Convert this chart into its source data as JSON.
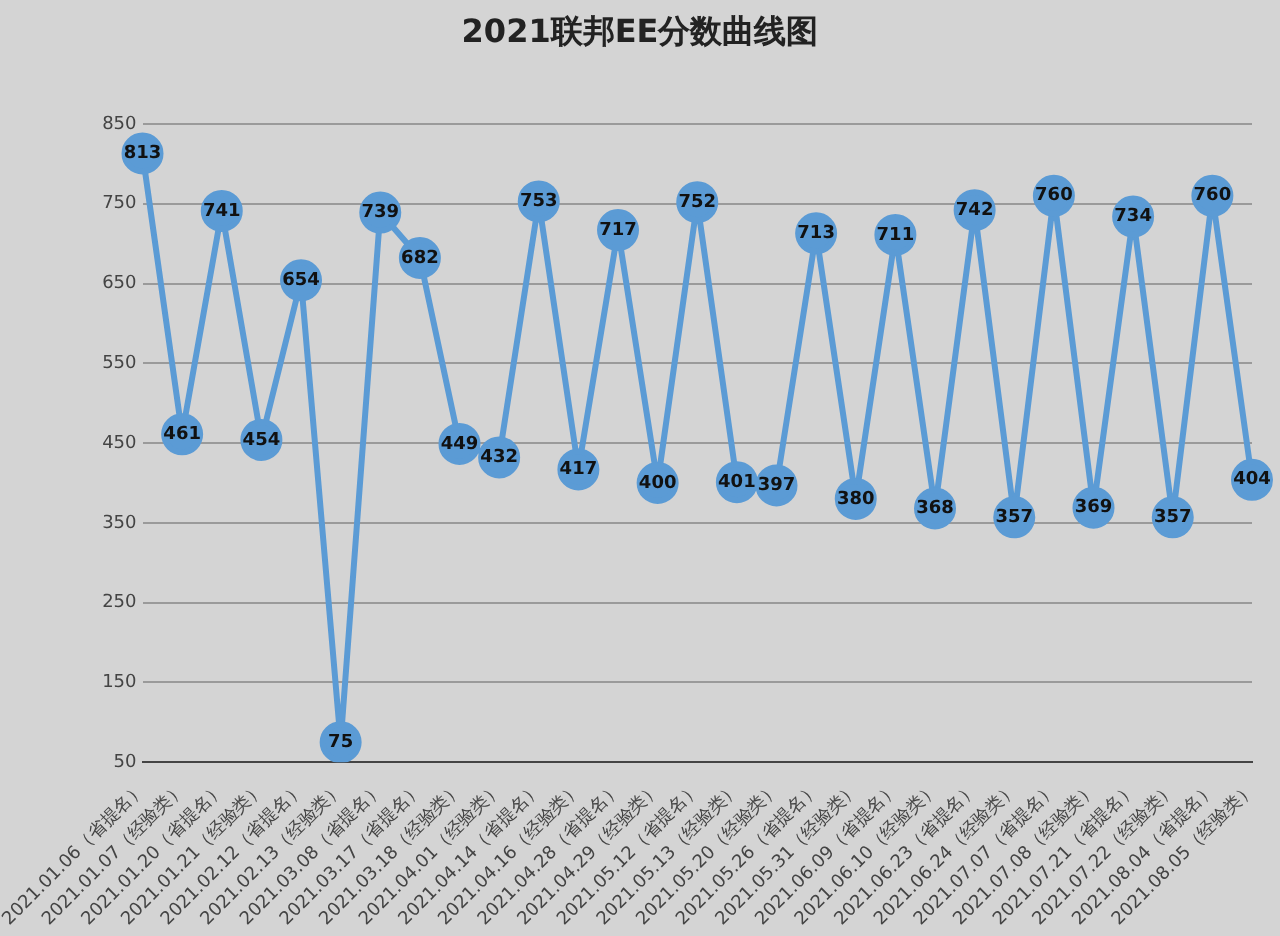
{
  "chart_data": {
    "type": "line",
    "title": "2021联邦EE分数曲线图",
    "categories": [
      "2021.01.06（省提名）",
      "2021.01.07（经验类）",
      "2021.01.20（省提名）",
      "2021.01.21（经验类）",
      "2021.02.12（省提名）",
      "2021.02.13（经验类）",
      "2021.03.08（省提名）",
      "2021.03.17（省提名）",
      "2021.03.18（经验类）",
      "2021.04.01（经验类）",
      "2021.04.14（省提名）",
      "2021.04.16（经验类）",
      "2021.04.28（省提名）",
      "2021.04.29（经验类）",
      "2021.05.12（省提名）",
      "2021.05.13（经验类）",
      "2021.05.20（经验类）",
      "2021.05.26（省提名）",
      "2021.05.31（经验类）",
      "2021.06.09（省提名）",
      "2021.06.10（经验类）",
      "2021.06.23（省提名）",
      "2021.06.24（经验类）",
      "2021.07.07（省提名）",
      "2021.07.08（经验类）",
      "2021.07.21（省提名）",
      "2021.07.22（经验类）",
      "2021.08.04（省提名）",
      "2021.08.05（经验类）"
    ],
    "series": [
      {
        "color": "#5b9bd5",
        "values": [
          813,
          461,
          741,
          454,
          654,
          75,
          739,
          682,
          449,
          432,
          753,
          417,
          717,
          400,
          752,
          401,
          397,
          713,
          380,
          711,
          368,
          742,
          357,
          760,
          369,
          734,
          357,
          760,
          404
        ]
      }
    ],
    "ylim": [
      50,
      850
    ],
    "yticks": [
      50,
      150,
      250,
      350,
      450,
      550,
      650,
      750,
      850
    ],
    "grid": "y",
    "legend": false,
    "marker": "circle",
    "line_style": "solid",
    "data_labels": true
  }
}
